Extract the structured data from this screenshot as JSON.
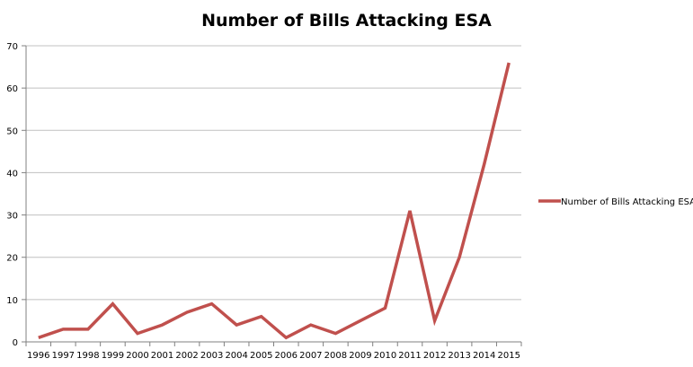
{
  "chart_data": {
    "type": "line",
    "title": "Number of Bills Attacking ESA",
    "xlabel": "",
    "ylabel": "",
    "categories": [
      "1996",
      "1997",
      "1998",
      "1999",
      "2000",
      "2001",
      "2002",
      "2003",
      "2004",
      "2005",
      "2006",
      "2007",
      "2008",
      "2009",
      "2010",
      "2011",
      "2012",
      "2013",
      "2014",
      "2015"
    ],
    "series": [
      {
        "name": "Number of Bills Attacking ESA",
        "color": "#c0504d",
        "values": [
          1,
          3,
          3,
          9,
          2,
          4,
          7,
          9,
          4,
          6,
          1,
          4,
          2,
          5,
          8,
          31,
          5,
          20,
          42,
          66
        ]
      }
    ],
    "ylim": [
      0,
      70
    ],
    "yticks": [
      0,
      10,
      20,
      30,
      40,
      50,
      60,
      70
    ],
    "grid": true,
    "legend_position": "right",
    "grid_color": "#c0c0c0"
  }
}
